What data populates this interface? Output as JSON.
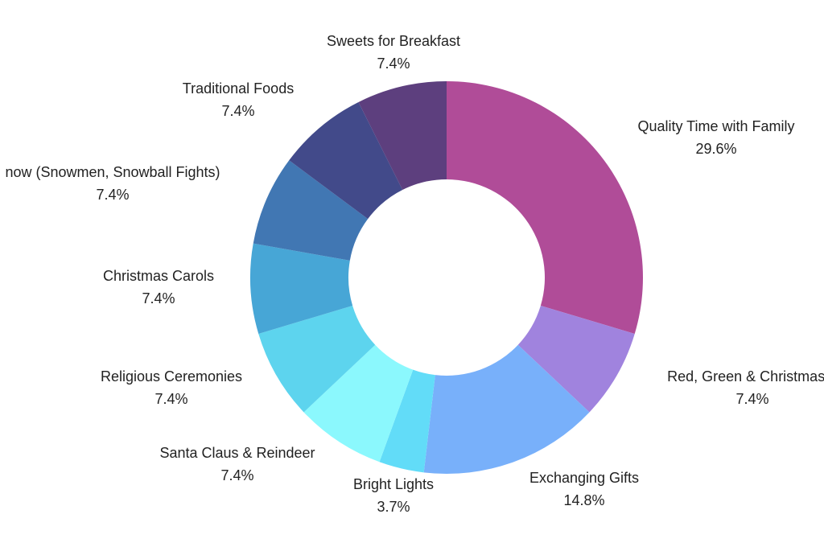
{
  "chart_data": {
    "type": "pie",
    "style": "donut",
    "legend": "none",
    "slices": [
      {
        "label": "Quality Time with Family",
        "value": 29.6,
        "value_label": "29.6%",
        "color": "#B04C98"
      },
      {
        "label": "Red, Green & Christmas T",
        "value": 7.4,
        "value_label": "7.4%",
        "color": "#A083DE"
      },
      {
        "label": "Exchanging Gifts",
        "value": 14.8,
        "value_label": "14.8%",
        "color": "#78B0FA"
      },
      {
        "label": "Bright Lights",
        "value": 3.7,
        "value_label": "3.7%",
        "color": "#62DCF8"
      },
      {
        "label": "Santa Claus & Reindeer",
        "value": 7.4,
        "value_label": "7.4%",
        "color": "#8BF8FD"
      },
      {
        "label": "Religious Ceremonies",
        "value": 7.4,
        "value_label": "7.4%",
        "color": "#5DD4EE"
      },
      {
        "label": "Christmas Carols",
        "value": 7.4,
        "value_label": "7.4%",
        "color": "#47A6D6"
      },
      {
        "label": "now (Snowmen, Snowball Fights)",
        "value": 7.4,
        "value_label": "7.4%",
        "color": "#4177B3"
      },
      {
        "label": "Traditional Foods",
        "value": 7.4,
        "value_label": "7.4%",
        "color": "#424A8A"
      },
      {
        "label": "Sweets for Breakfast",
        "value": 7.4,
        "value_label": "7.4%",
        "color": "#5D3F7E"
      }
    ]
  }
}
